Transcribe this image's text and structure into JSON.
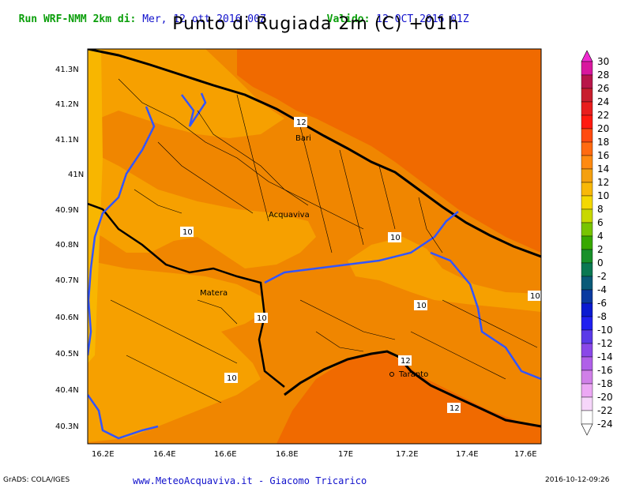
{
  "header": {
    "run_label": "Run WRF-NMM 2km di:",
    "run_date": "Mer, 12 ott 2016 00Z",
    "valid_label": "Valido:",
    "valid_date": "12 OCT 2016 01Z"
  },
  "title": "Punto di Rugiada 2m (C) +01h",
  "map": {
    "lat_ticks": [
      "41.3N",
      "41.2N",
      "41.1N",
      "41N",
      "40.9N",
      "40.8N",
      "40.7N",
      "40.6N",
      "40.5N",
      "40.4N",
      "40.3N"
    ],
    "lon_ticks": [
      "16.2E",
      "16.4E",
      "16.6E",
      "16.8E",
      "17E",
      "17.2E",
      "17.4E",
      "17.6E"
    ],
    "cities": [
      "Bari",
      "Acquaviva",
      "Matera",
      "Taranto"
    ],
    "contour_labels": [
      "12",
      "10",
      "10",
      "10",
      "10",
      "10",
      "10",
      "12",
      "12"
    ],
    "colors": {
      "band_8_10": "#f6a000",
      "band_10_12": "#f08600",
      "band_12_14": "#f06a00",
      "band_6_8": "#f8b600",
      "coast": "#000000",
      "border": "#3355ff"
    }
  },
  "colorbar": {
    "labels": [
      "30",
      "28",
      "26",
      "24",
      "22",
      "20",
      "18",
      "16",
      "14",
      "12",
      "10",
      "8",
      "6",
      "4",
      "2",
      "0",
      "-2",
      "-4",
      "-6",
      "-8",
      "-10",
      "-12",
      "-14",
      "-16",
      "-18",
      "-20",
      "-22",
      "-24"
    ],
    "colors": [
      "#f02ad0",
      "#d8189e",
      "#b8164a",
      "#c81e2e",
      "#e81e1e",
      "#ff1a10",
      "#ff4a10",
      "#ff6a10",
      "#ff8a10",
      "#f4a010",
      "#f8b808",
      "#f4d800",
      "#c8d800",
      "#78c400",
      "#38a800",
      "#18902a",
      "#0a7852",
      "#0a5a78",
      "#0a3aa0",
      "#0a1ad0",
      "#2020f0",
      "#5a3ae8",
      "#8a48e8",
      "#b060e8",
      "#d080e8",
      "#eca8f4",
      "#f6d6fa",
      "#ffffff"
    ]
  },
  "footer": {
    "left": "GrADS: COLA/IGES",
    "credit": "www.MeteoAcquaviva.it - Giacomo Tricarico",
    "timestamp": "2016-10-12-09:26"
  }
}
